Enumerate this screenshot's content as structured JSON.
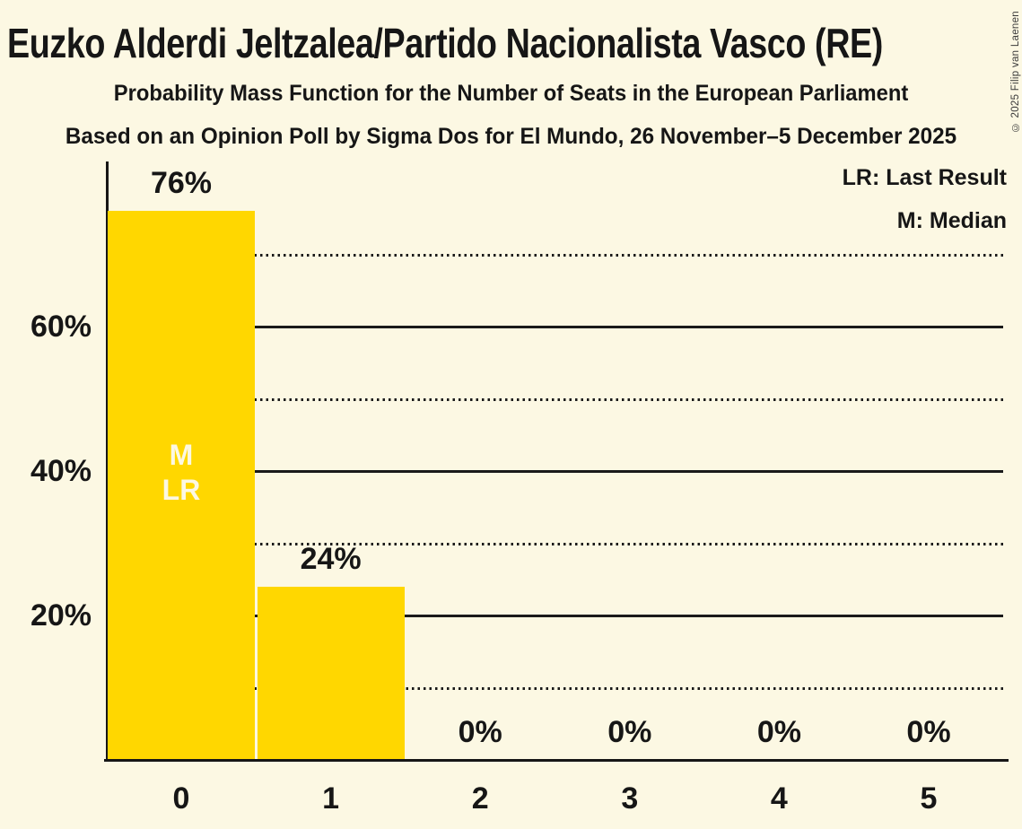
{
  "page": {
    "title": "Euzko Alderdi Jeltzalea/Partido Nacionalista Vasco (RE)",
    "subtitle": "Probability Mass Function for the Number of Seats in the European Parliament",
    "source": "Based on an Opinion Poll by Sigma Dos for El Mundo, 26 November–5 December 2025",
    "copyright": "© 2025 Filip van Laenen"
  },
  "legend": {
    "last_result": "LR: Last Result",
    "median": "M: Median"
  },
  "colors": {
    "background": "#FCF8E3",
    "bar": "#FFD700",
    "text": "#161616",
    "grid": "#1A1A1A",
    "axis": "#161616",
    "in_bar_text": "#FCF8E3",
    "copyright_text": "#3A3A3A"
  },
  "chart_data": {
    "type": "bar",
    "title": "Probability Mass Function for the Number of Seats in the European Parliament",
    "categories": [
      "0",
      "1",
      "2",
      "3",
      "4",
      "5"
    ],
    "values": [
      76,
      24,
      0,
      0,
      0,
      0
    ],
    "value_labels": [
      "76%",
      "24%",
      "0%",
      "0%",
      "0%",
      "0%"
    ],
    "bar_annotations": [
      [
        "M",
        "LR"
      ],
      [],
      [],
      [],
      [],
      []
    ],
    "median_seats": 0,
    "last_result_seats": 0,
    "xlabel": "",
    "ylabel": "",
    "ylim": [
      0,
      83
    ],
    "yticks": [
      {
        "value": 20,
        "label": "20%"
      },
      {
        "value": 40,
        "label": "40%"
      },
      {
        "value": 60,
        "label": "60%"
      }
    ],
    "gridlines": {
      "solid": [
        20,
        40,
        60
      ],
      "dotted": [
        10,
        30,
        50,
        70
      ]
    },
    "legend_position": "top-right",
    "grid": "horizontal"
  }
}
